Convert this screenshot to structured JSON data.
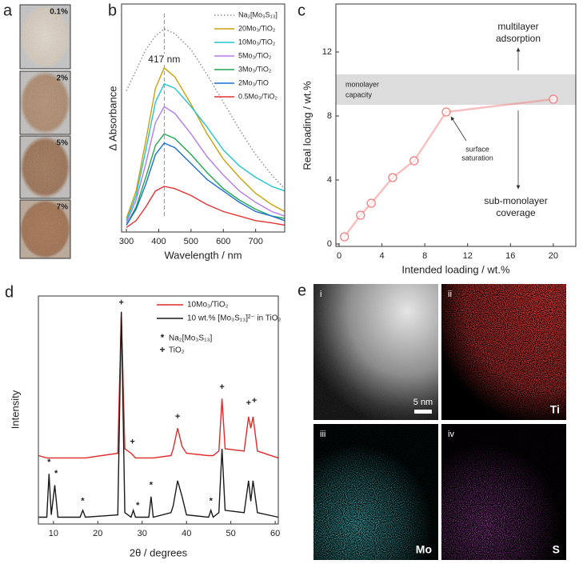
{
  "panels": {
    "a": {
      "letter": "a",
      "labels": [
        "0.1%",
        "2%",
        "5%",
        "7%"
      ]
    },
    "e": {
      "letter": "e",
      "scale_bar": "5 nm",
      "tiles": [
        {
          "index": "i"
        },
        {
          "index": "ii",
          "element": "Ti"
        },
        {
          "index": "iii",
          "element": "Mo"
        },
        {
          "index": "iv",
          "element": "S"
        }
      ]
    }
  },
  "chart_data": [
    {
      "type": "line",
      "label": "b",
      "xlabel": "Wavelength / nm",
      "ylabel": "Δ Absorbance",
      "x": [
        300,
        330,
        360,
        390,
        417,
        450,
        500,
        550,
        600,
        650,
        700,
        750,
        790
      ],
      "xlim": [
        285,
        790
      ],
      "xticks": [
        300,
        400,
        500,
        600,
        700
      ],
      "ylim": [
        0,
        1
      ],
      "annotation": {
        "text": "417 nm",
        "x": 417
      },
      "series": [
        {
          "name": "Na₂[Mo₃S₁₃]",
          "color": "#8a8a8a",
          "dash": "dotted",
          "values": [
            0.62,
            0.71,
            0.8,
            0.86,
            0.89,
            0.87,
            0.8,
            0.69,
            0.57,
            0.45,
            0.34,
            0.25,
            0.19
          ]
        },
        {
          "name": "20Mo₃/TiO₂",
          "color": "#c9a20a",
          "values": [
            0.06,
            0.18,
            0.4,
            0.63,
            0.72,
            0.68,
            0.56,
            0.43,
            0.32,
            0.24,
            0.17,
            0.12,
            0.09
          ]
        },
        {
          "name": "10Mo₃/TiO₂",
          "color": "#22c4d2",
          "values": [
            0.05,
            0.16,
            0.36,
            0.57,
            0.65,
            0.63,
            0.55,
            0.46,
            0.36,
            0.29,
            0.24,
            0.2,
            0.18
          ]
        },
        {
          "name": "5Mo₃/TiO₂",
          "color": "#b47be8",
          "values": [
            0.04,
            0.14,
            0.3,
            0.48,
            0.55,
            0.52,
            0.43,
            0.33,
            0.25,
            0.18,
            0.13,
            0.09,
            0.07
          ]
        },
        {
          "name": "3Mo₃/TiO₂",
          "color": "#24a650",
          "values": [
            0.03,
            0.11,
            0.24,
            0.38,
            0.43,
            0.41,
            0.34,
            0.26,
            0.19,
            0.14,
            0.1,
            0.07,
            0.06
          ]
        },
        {
          "name": "2Mo₃/TiO",
          "color": "#1b6fd0",
          "values": [
            0.03,
            0.1,
            0.21,
            0.34,
            0.39,
            0.37,
            0.3,
            0.23,
            0.18,
            0.13,
            0.09,
            0.07,
            0.05
          ]
        },
        {
          "name": "0.5Mo₃/TiO₂",
          "color": "#e23434",
          "values": [
            0.02,
            0.05,
            0.11,
            0.18,
            0.2,
            0.19,
            0.16,
            0.12,
            0.09,
            0.07,
            0.05,
            0.04,
            0.03
          ]
        }
      ]
    },
    {
      "type": "scatter",
      "label": "c",
      "xlabel": "Intended loading / wt.%",
      "ylabel": "Real loading / wt.%",
      "x": [
        0.5,
        2,
        3,
        5,
        7,
        10,
        20
      ],
      "values": [
        0.45,
        1.8,
        2.55,
        4.15,
        5.2,
        8.25,
        9.05
      ],
      "color": "#ef7f7f",
      "xlim": [
        -0.3,
        22.1
      ],
      "xticks": [
        0,
        4,
        8,
        12,
        16,
        20
      ],
      "ylim": [
        -0.15,
        15
      ],
      "yticks": [
        0,
        4,
        8,
        12
      ],
      "band": {
        "range": [
          8.7,
          10.6
        ],
        "text": [
          "monolayer",
          "capacity"
        ]
      },
      "annotations": [
        [
          "multilayer",
          "adsorption"
        ],
        [
          "surface",
          "saturation"
        ],
        [
          "sub-monolayer",
          "coverage"
        ]
      ]
    },
    {
      "type": "line",
      "label": "d",
      "xlabel": "2θ / degrees",
      "ylabel": "Intensity",
      "x": [
        6.6,
        8.5,
        9,
        9.5,
        10.3,
        11,
        16,
        16.6,
        17.2,
        24.5,
        25.3,
        26.1,
        27.5,
        28,
        28.5,
        31.5,
        32,
        32.5,
        36.5,
        37,
        38,
        39,
        40,
        45,
        45.5,
        46,
        47.3,
        48,
        48.7,
        53,
        54,
        54.5,
        55,
        56,
        60.7
      ],
      "xlim": [
        6.6,
        60.7
      ],
      "xticks": [
        10,
        20,
        30,
        40,
        50,
        60
      ],
      "ylim": [
        0,
        1
      ],
      "series": [
        {
          "name": "10Mo₃/TiO₂",
          "color": "#e02a2a",
          "values": [
            0.3,
            0.29,
            0.29,
            0.29,
            0.29,
            0.29,
            0.29,
            0.29,
            0.29,
            0.31,
            0.93,
            0.33,
            0.31,
            0.3,
            0.29,
            0.29,
            0.29,
            0.29,
            0.3,
            0.33,
            0.42,
            0.34,
            0.31,
            0.3,
            0.3,
            0.3,
            0.32,
            0.55,
            0.33,
            0.32,
            0.47,
            0.42,
            0.47,
            0.32,
            0.29
          ]
        },
        {
          "name": "10 wt.% [Mo₃S₁₃]²⁻ in TiO₂",
          "color": "#1a1a1a",
          "values": [
            0.03,
            0.03,
            0.22,
            0.04,
            0.17,
            0.03,
            0.03,
            0.06,
            0.03,
            0.04,
            0.93,
            0.05,
            0.03,
            0.06,
            0.03,
            0.03,
            0.12,
            0.03,
            0.05,
            0.08,
            0.19,
            0.12,
            0.04,
            0.03,
            0.06,
            0.03,
            0.05,
            0.33,
            0.06,
            0.05,
            0.19,
            0.1,
            0.19,
            0.05,
            0.03
          ]
        }
      ],
      "marker_legend": [
        {
          "symbol": "*",
          "label": "Na₂[Mo₃S₁₃]"
        },
        {
          "symbol": "+",
          "label": "TiO₂"
        }
      ],
      "peak_marks": [
        {
          "symbol": "*",
          "x": 9,
          "y": 0.27
        },
        {
          "symbol": "*",
          "x": 10.6,
          "y": 0.22
        },
        {
          "symbol": "*",
          "x": 16.6,
          "y": 0.1
        },
        {
          "symbol": "*",
          "x": 29,
          "y": 0.08
        },
        {
          "symbol": "*",
          "x": 32,
          "y": 0.17
        },
        {
          "symbol": "*",
          "x": 45.5,
          "y": 0.1
        },
        {
          "symbol": "+",
          "x": 25.3,
          "y": 0.97
        },
        {
          "symbol": "+",
          "x": 27.8,
          "y": 0.36
        },
        {
          "symbol": "+",
          "x": 38,
          "y": 0.47
        },
        {
          "symbol": "+",
          "x": 48,
          "y": 0.6
        },
        {
          "symbol": "+",
          "x": 54,
          "y": 0.53
        },
        {
          "symbol": "+",
          "x": 55.3,
          "y": 0.54
        }
      ]
    }
  ]
}
